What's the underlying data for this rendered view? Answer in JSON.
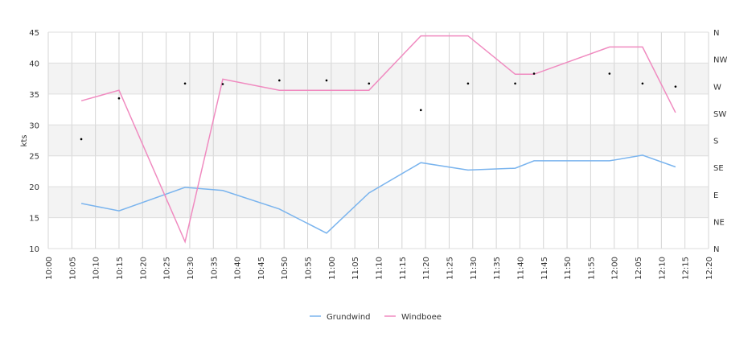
{
  "chart_data": {
    "type": "line",
    "ylabel": "kts",
    "ylim": [
      10,
      45
    ],
    "y_ticks": [
      10,
      15,
      20,
      25,
      30,
      35,
      40,
      45
    ],
    "x_ticks": [
      "10:00",
      "10:05",
      "10:10",
      "10:15",
      "10:20",
      "10:25",
      "10:30",
      "10:35",
      "10:40",
      "10:45",
      "10:50",
      "10:55",
      "11:00",
      "11:05",
      "11:10",
      "11:15",
      "11:20",
      "11:25",
      "11:30",
      "11:35",
      "11:40",
      "11:45",
      "11:50",
      "11:55",
      "12:00",
      "12:05",
      "12:10",
      "12:15",
      "12:20"
    ],
    "right_axis_ticks": [
      "N",
      "NE",
      "E",
      "SE",
      "S",
      "SW",
      "W",
      "NW",
      "N"
    ],
    "series": [
      {
        "name": "Grundwind",
        "color": "#7ab4ee",
        "points": [
          [
            "10:07",
            17.3
          ],
          [
            "10:15",
            16.1
          ],
          [
            "10:29",
            19.9
          ],
          [
            "10:37",
            19.4
          ],
          [
            "10:49",
            16.4
          ],
          [
            "10:59",
            12.5
          ],
          [
            "11:08",
            19.0
          ],
          [
            "11:19",
            23.9
          ],
          [
            "11:29",
            22.7
          ],
          [
            "11:39",
            23.0
          ],
          [
            "11:43",
            24.2
          ],
          [
            "11:59",
            24.2
          ],
          [
            "12:06",
            25.1
          ],
          [
            "12:13",
            23.2
          ]
        ]
      },
      {
        "name": "Windboee",
        "color": "#f08bc0",
        "points": [
          [
            "10:07",
            33.9
          ],
          [
            "10:15",
            35.6
          ],
          [
            "10:29",
            11.1
          ],
          [
            "10:37",
            37.4
          ],
          [
            "10:49",
            35.6
          ],
          [
            "10:59",
            35.6
          ],
          [
            "11:08",
            35.6
          ],
          [
            "11:19",
            44.4
          ],
          [
            "11:29",
            44.4
          ],
          [
            "11:39",
            38.2
          ],
          [
            "11:43",
            38.2
          ],
          [
            "11:59",
            42.6
          ],
          [
            "12:06",
            42.6
          ],
          [
            "12:13",
            32.0
          ]
        ]
      }
    ],
    "direction_points": [
      [
        "10:07",
        27.7
      ],
      [
        "10:15",
        34.3
      ],
      [
        "10:29",
        36.7
      ],
      [
        "10:37",
        36.6
      ],
      [
        "10:49",
        37.2
      ],
      [
        "10:59",
        37.2
      ],
      [
        "11:08",
        36.7
      ],
      [
        "11:19",
        32.4
      ],
      [
        "11:29",
        36.7
      ],
      [
        "11:39",
        36.7
      ],
      [
        "11:43",
        38.3
      ],
      [
        "11:59",
        38.3
      ],
      [
        "12:06",
        36.7
      ],
      [
        "12:13",
        36.2
      ]
    ],
    "band_color": "#f3f3f3",
    "grid": true,
    "legend_position": "bottom"
  }
}
